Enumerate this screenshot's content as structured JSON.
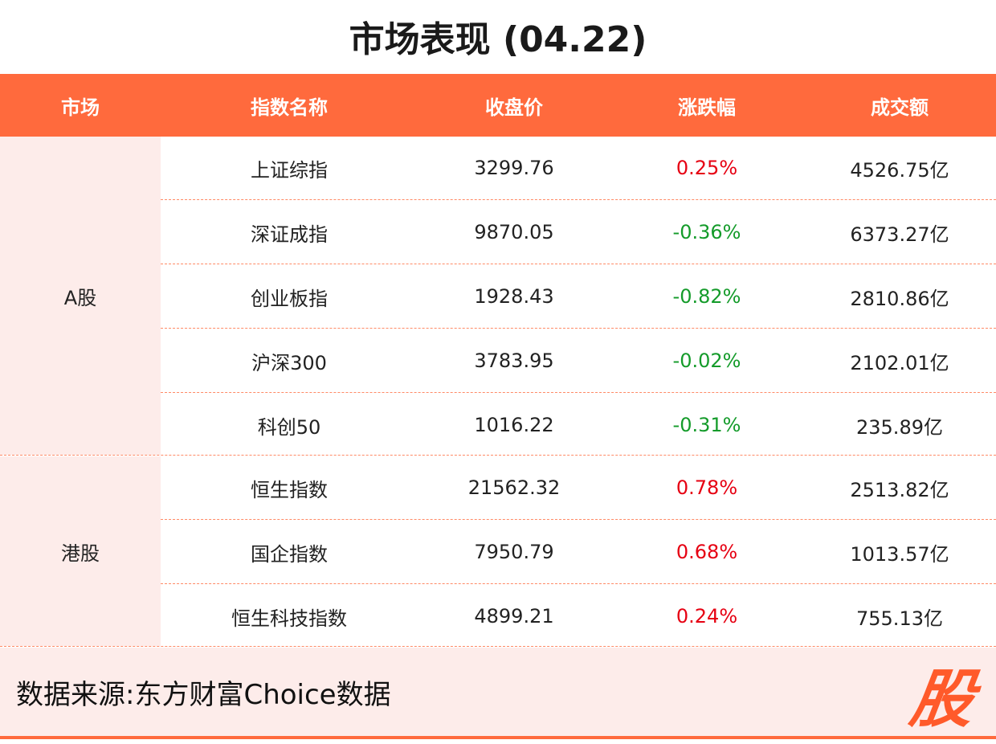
{
  "title": "市场表现 (04.22)",
  "columns": [
    "市场",
    "指数名称",
    "收盘价",
    "涨跌幅",
    "成交额"
  ],
  "markets": {
    "a_share": "A股",
    "hk": "港股"
  },
  "rows": [
    {
      "name": "上证综指",
      "close": "3299.76",
      "change": "0.25%",
      "volume": "4526.75亿"
    },
    {
      "name": "深证成指",
      "close": "9870.05",
      "change": "-0.36%",
      "volume": "6373.27亿"
    },
    {
      "name": "创业板指",
      "close": "1928.43",
      "change": "-0.82%",
      "volume": "2810.86亿"
    },
    {
      "name": "沪深300",
      "close": "3783.95",
      "change": "-0.02%",
      "volume": "2102.01亿"
    },
    {
      "name": "科创50",
      "close": "1016.22",
      "change": "-0.31%",
      "volume": "235.89亿"
    },
    {
      "name": "恒生指数",
      "close": "21562.32",
      "change": "0.78%",
      "volume": "2513.82亿"
    },
    {
      "name": "国企指数",
      "close": "7950.79",
      "change": "0.68%",
      "volume": "1013.57亿"
    },
    {
      "name": "恒生科技指数",
      "close": "4899.21",
      "change": "0.24%",
      "volume": "755.13亿"
    }
  ],
  "footer": {
    "source": "数据来源:东方财富Choice数据",
    "logo": "股"
  },
  "colors": {
    "header_bg": "#ff6a3d",
    "market_bg": "#fdecea",
    "up": "#e60012",
    "down": "#149b2a"
  }
}
